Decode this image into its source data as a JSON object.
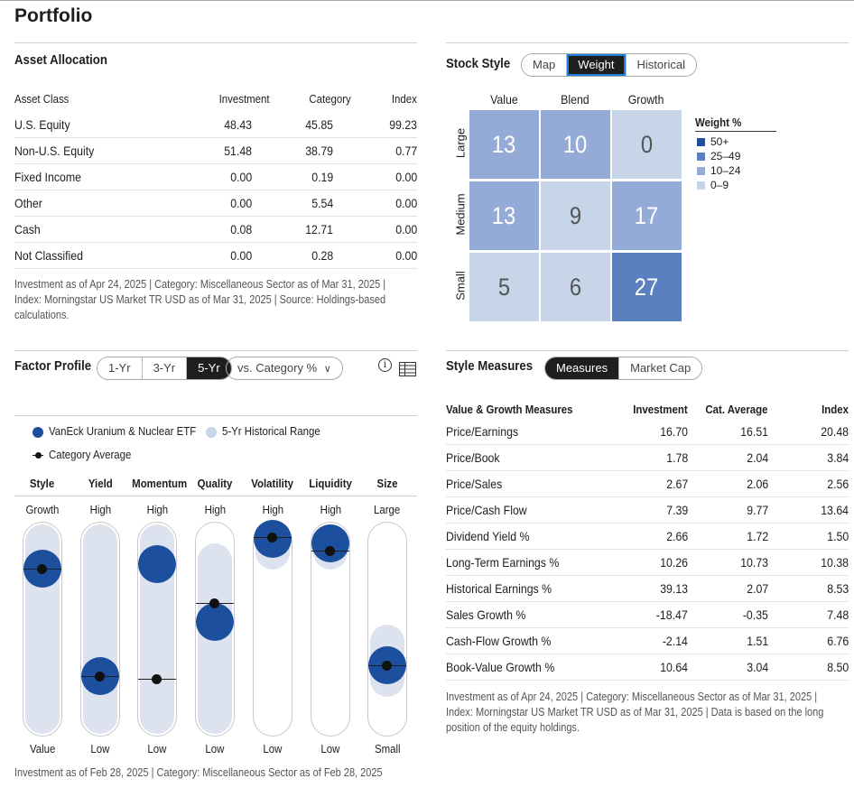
{
  "page_title": "Portfolio",
  "asset_allocation": {
    "title": "Asset Allocation",
    "headers": [
      "Asset Class",
      "Investment",
      "Category",
      "Index"
    ],
    "rows": [
      [
        "U.S. Equity",
        "48.43",
        "45.85",
        "99.23"
      ],
      [
        "Non-U.S. Equity",
        "51.48",
        "38.79",
        "0.77"
      ],
      [
        "Fixed Income",
        "0.00",
        "0.19",
        "0.00"
      ],
      [
        "Other",
        "0.00",
        "5.54",
        "0.00"
      ],
      [
        "Cash",
        "0.08",
        "12.71",
        "0.00"
      ],
      [
        "Not Classified",
        "0.00",
        "0.28",
        "0.00"
      ]
    ],
    "note_lines": [
      "Investment as of Apr 24, 2025 | Category: Miscellaneous Sector as of Mar 31, 2025 |",
      "Index: Morningstar US Market TR USD as of Mar 31, 2025 | Source: Holdings-based",
      "calculations."
    ]
  },
  "stock_style": {
    "title": "Stock Style",
    "tabs": [
      "Map",
      "Weight",
      "Historical"
    ],
    "active_tab": "Weight",
    "columns": [
      "Value",
      "Blend",
      "Growth"
    ],
    "rows": [
      "Large",
      "Medium",
      "Small"
    ],
    "grid": [
      [
        "13",
        "10",
        "0"
      ],
      [
        "13",
        "9",
        "17"
      ],
      [
        "5",
        "6",
        "27"
      ]
    ],
    "legend_title": "Weight %",
    "legend": [
      {
        "label": "50+",
        "color": "#1e4f9c"
      },
      {
        "label": "25–49",
        "color": "#5b80bf"
      },
      {
        "label": "10–24",
        "color": "#93abd6"
      },
      {
        "label": "0–9",
        "color": "#c8d4e8"
      }
    ]
  },
  "factor_profile": {
    "title": "Factor Profile",
    "periods": [
      "1-Yr",
      "3-Yr",
      "5-Yr"
    ],
    "active_period": "5-Yr",
    "compare_label": "vs. Category %",
    "compare_chevron": "chevron-down-icon",
    "legend": {
      "fund": "VanEck Uranium & Nuclear ETF",
      "range": "5-Yr Historical Range",
      "category": "Category Average"
    },
    "factors": [
      {
        "name": "Style",
        "top": "Growth",
        "bottom": "Value",
        "fund": 0.82,
        "category": 0.82,
        "range": [
          0.0,
          1.0
        ]
      },
      {
        "name": "Yield",
        "top": "High",
        "bottom": "Low",
        "fund": 0.26,
        "category": 0.26,
        "range": [
          0.0,
          1.0
        ]
      },
      {
        "name": "Momentum",
        "top": "High",
        "bottom": "Low",
        "fund": 0.84,
        "category": 0.25,
        "range": [
          0.0,
          1.0
        ]
      },
      {
        "name": "Quality",
        "top": "High",
        "bottom": "Low",
        "fund": 0.54,
        "category": 0.64,
        "range": [
          0.0,
          0.9
        ]
      },
      {
        "name": "Volatility",
        "top": "High",
        "bottom": "Low",
        "fund": 0.97,
        "category": 0.98,
        "range": [
          0.86,
          1.0
        ]
      },
      {
        "name": "Liquidity",
        "top": "High",
        "bottom": "Low",
        "fund": 0.95,
        "category": 0.91,
        "range": [
          0.86,
          1.0
        ]
      },
      {
        "name": "Size",
        "top": "Large",
        "bottom": "Small",
        "fund": 0.32,
        "category": 0.32,
        "range": [
          0.2,
          0.48
        ]
      }
    ],
    "note": "Investment as of Feb 28, 2025 | Category: Miscellaneous Sector as of Feb 28, 2025"
  },
  "style_measures": {
    "title": "Style Measures",
    "tabs": [
      "Measures",
      "Market Cap"
    ],
    "active_tab": "Measures",
    "headers": [
      "Value & Growth Measures",
      "Investment",
      "Cat. Average",
      "Index"
    ],
    "rows": [
      [
        "Price/Earnings",
        "16.70",
        "16.51",
        "20.48"
      ],
      [
        "Price/Book",
        "1.78",
        "2.04",
        "3.84"
      ],
      [
        "Price/Sales",
        "2.67",
        "2.06",
        "2.56"
      ],
      [
        "Price/Cash Flow",
        "7.39",
        "9.77",
        "13.64"
      ],
      [
        "Dividend Yield %",
        "2.66",
        "1.72",
        "1.50"
      ],
      [
        "Long-Term Earnings %",
        "10.26",
        "10.73",
        "10.38"
      ],
      [
        "Historical Earnings %",
        "39.13",
        "2.07",
        "8.53"
      ],
      [
        "Sales Growth %",
        "-18.47",
        "-0.35",
        "7.48"
      ],
      [
        "Cash-Flow Growth %",
        "-2.14",
        "1.51",
        "6.76"
      ],
      [
        "Book-Value Growth %",
        "10.64",
        "3.04",
        "8.50"
      ]
    ],
    "note_lines": [
      "Investment as of Apr 24, 2025 | Category: Miscellaneous Sector as of Mar 31, 2025 |",
      "Index: Morningstar US Market TR USD as of Mar 31, 2025 | Data is based on the long",
      "position of the equity holdings."
    ]
  },
  "icons": {
    "info": "info-icon",
    "table": "table-icon"
  }
}
